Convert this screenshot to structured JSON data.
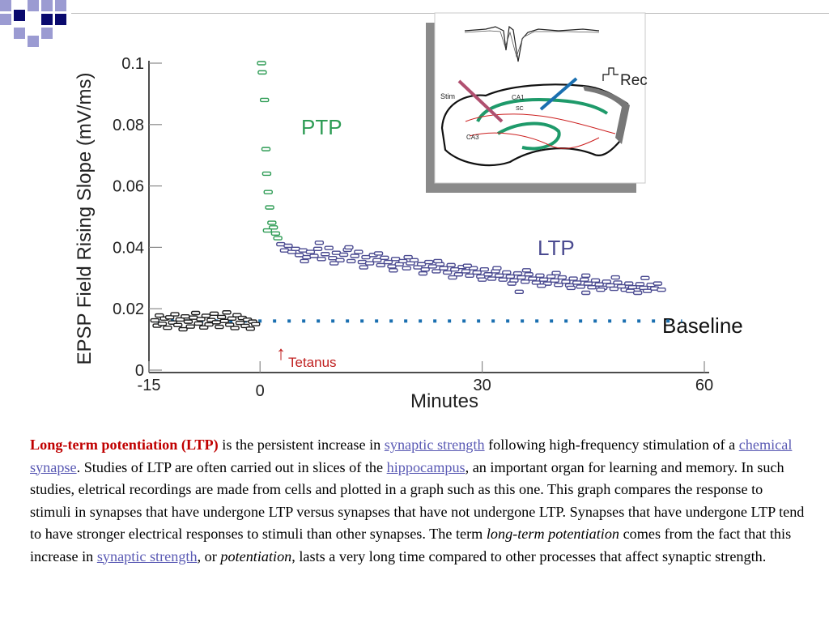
{
  "colors": {
    "accent_dark": "#0a0a6e",
    "accent_light": "#9b9bd2",
    "ptp_green": "#2e9c55",
    "ltp_marker": "#4a4a90",
    "baseline_marker": "#1e1e1e",
    "baseline_dotted": "#1a6fb0",
    "tetanus_red": "#c02020",
    "caption_lead": "#c00000",
    "caption_link": "#5a5ab4"
  },
  "chart_data": {
    "type": "scatter",
    "title": "",
    "xlabel": "Minutes",
    "ylabel": "EPSP Field Rising Slope (mV/ms)",
    "xlim": [
      -15,
      60
    ],
    "ylim": [
      0,
      0.1
    ],
    "x_ticks": [
      "-15",
      "0",
      "30",
      "60"
    ],
    "y_ticks": [
      "0",
      "0.02",
      "0.04",
      "0.06",
      "0.08",
      "0.1"
    ],
    "grid": false,
    "annotations": {
      "ptp": "PTP",
      "ltp": "LTP",
      "baseline": "Baseline",
      "tetanus": "Tetanus",
      "tetanus_arrow": "↑"
    },
    "baseline_level": 0.016,
    "series": [
      {
        "role": "pre-tetanus",
        "points": [
          [
            -14.2,
            0.0162
          ],
          [
            -13.9,
            0.0145
          ],
          [
            -13.6,
            0.0178
          ],
          [
            -13.2,
            0.0151
          ],
          [
            -12.9,
            0.0168
          ],
          [
            -12.5,
            0.0138
          ],
          [
            -12.2,
            0.0172
          ],
          [
            -11.8,
            0.0155
          ],
          [
            -11.5,
            0.0182
          ],
          [
            -11.1,
            0.0147
          ],
          [
            -10.8,
            0.0165
          ],
          [
            -10.4,
            0.0133
          ],
          [
            -10.1,
            0.0175
          ],
          [
            -9.7,
            0.0158
          ],
          [
            -9.4,
            0.0142
          ],
          [
            -9.0,
            0.0171
          ],
          [
            -8.7,
            0.0186
          ],
          [
            -8.3,
            0.0152
          ],
          [
            -8.0,
            0.0166
          ],
          [
            -7.6,
            0.0139
          ],
          [
            -7.3,
            0.0177
          ],
          [
            -6.9,
            0.0149
          ],
          [
            -6.6,
            0.0163
          ],
          [
            -6.2,
            0.0184
          ],
          [
            -5.9,
            0.0156
          ],
          [
            -5.5,
            0.0141
          ],
          [
            -5.2,
            0.0173
          ],
          [
            -4.8,
            0.016
          ],
          [
            -4.5,
            0.0188
          ],
          [
            -4.1,
            0.0148
          ],
          [
            -3.8,
            0.0168
          ],
          [
            -3.4,
            0.0137
          ],
          [
            -3.1,
            0.0179
          ],
          [
            -2.7,
            0.0154
          ],
          [
            -2.4,
            0.017
          ],
          [
            -2.0,
            0.0144
          ],
          [
            -1.7,
            0.0164
          ],
          [
            -1.3,
            0.0135
          ],
          [
            -1.0,
            0.0158
          ],
          [
            -0.6,
            0.015
          ]
        ]
      },
      {
        "role": "post-tetanic potentiation",
        "points": [
          [
            0.2,
            0.1
          ],
          [
            0.3,
            0.097
          ],
          [
            0.6,
            0.088
          ],
          [
            0.8,
            0.072
          ],
          [
            0.9,
            0.064
          ],
          [
            1.1,
            0.058
          ],
          [
            1.3,
            0.053
          ],
          [
            1.6,
            0.048
          ],
          [
            1.8,
            0.0465
          ],
          [
            2.1,
            0.0445
          ],
          [
            2.4,
            0.043
          ],
          [
            1.0,
            0.0455
          ]
        ]
      },
      {
        "role": "post-tetanus",
        "points": [
          [
            2.8,
            0.041
          ],
          [
            3.3,
            0.039
          ],
          [
            3.8,
            0.0405
          ],
          [
            4.3,
            0.0385
          ],
          [
            4.8,
            0.0395
          ],
          [
            5.3,
            0.0375
          ],
          [
            5.8,
            0.039
          ],
          [
            6.3,
            0.0368
          ],
          [
            6.8,
            0.0385
          ],
          [
            7.3,
            0.0372
          ],
          [
            7.8,
            0.0395
          ],
          [
            8.3,
            0.0362
          ],
          [
            8.8,
            0.0378
          ],
          [
            9.3,
            0.0398
          ],
          [
            9.8,
            0.0365
          ],
          [
            10.3,
            0.0382
          ],
          [
            10.8,
            0.0358
          ],
          [
            11.3,
            0.0376
          ],
          [
            11.8,
            0.0392
          ],
          [
            12.3,
            0.0355
          ],
          [
            12.8,
            0.0372
          ],
          [
            13.3,
            0.0385
          ],
          [
            13.8,
            0.0352
          ],
          [
            14.3,
            0.0368
          ],
          [
            14.8,
            0.0348
          ],
          [
            15.3,
            0.0375
          ],
          [
            15.8,
            0.0358
          ],
          [
            16.3,
            0.0342
          ],
          [
            16.8,
            0.0366
          ],
          [
            17.3,
            0.0352
          ],
          [
            17.8,
            0.0338
          ],
          [
            18.3,
            0.0362
          ],
          [
            18.8,
            0.0345
          ],
          [
            19.3,
            0.0355
          ],
          [
            19.8,
            0.0332
          ],
          [
            20.3,
            0.0348
          ],
          [
            20.8,
            0.0358
          ],
          [
            21.3,
            0.0335
          ],
          [
            21.8,
            0.0345
          ],
          [
            22.3,
            0.0328
          ],
          [
            22.8,
            0.0352
          ],
          [
            23.3,
            0.0338
          ],
          [
            23.8,
            0.0322
          ],
          [
            24.3,
            0.0345
          ],
          [
            24.8,
            0.0332
          ],
          [
            25.3,
            0.0318
          ],
          [
            25.8,
            0.0342
          ],
          [
            26.3,
            0.0328
          ],
          [
            26.8,
            0.0312
          ],
          [
            27.3,
            0.0336
          ],
          [
            27.8,
            0.0322
          ],
          [
            28.3,
            0.0308
          ],
          [
            28.8,
            0.0332
          ],
          [
            29.3,
            0.0318
          ],
          [
            29.8,
            0.0305
          ],
          [
            30.3,
            0.0328
          ],
          [
            30.8,
            0.0312
          ],
          [
            31.3,
            0.0298
          ],
          [
            31.8,
            0.0322
          ],
          [
            32.3,
            0.0308
          ],
          [
            32.8,
            0.0295
          ],
          [
            33.3,
            0.0318
          ],
          [
            33.8,
            0.0305
          ],
          [
            34.3,
            0.0292
          ],
          [
            34.8,
            0.0315
          ],
          [
            35.3,
            0.0302
          ],
          [
            35.8,
            0.0288
          ],
          [
            36.3,
            0.0312
          ],
          [
            36.8,
            0.0298
          ],
          [
            37.3,
            0.0285
          ],
          [
            37.8,
            0.0308
          ],
          [
            38.3,
            0.0295
          ],
          [
            38.8,
            0.0282
          ],
          [
            39.3,
            0.0305
          ],
          [
            39.8,
            0.0292
          ],
          [
            40.3,
            0.0278
          ],
          [
            40.8,
            0.0302
          ],
          [
            41.3,
            0.0288
          ],
          [
            41.8,
            0.0276
          ],
          [
            42.3,
            0.0298
          ],
          [
            42.8,
            0.0285
          ],
          [
            43.3,
            0.0272
          ],
          [
            43.8,
            0.0295
          ],
          [
            44.3,
            0.0282
          ],
          [
            44.8,
            0.027
          ],
          [
            45.3,
            0.0292
          ],
          [
            45.8,
            0.0279
          ],
          [
            46.3,
            0.0268
          ],
          [
            46.8,
            0.0288
          ],
          [
            47.3,
            0.0276
          ],
          [
            47.8,
            0.0265
          ],
          [
            48.3,
            0.0285
          ],
          [
            48.8,
            0.0273
          ],
          [
            49.3,
            0.0262
          ],
          [
            49.8,
            0.0282
          ],
          [
            50.3,
            0.027
          ],
          [
            50.8,
            0.026
          ],
          [
            51.3,
            0.028
          ],
          [
            51.8,
            0.0268
          ],
          [
            52.3,
            0.0258
          ],
          [
            52.8,
            0.0278
          ],
          [
            53.3,
            0.0266
          ],
          [
            53.7,
            0.0282
          ],
          [
            54.2,
            0.0262
          ],
          [
            8.0,
            0.0415
          ],
          [
            12.0,
            0.04
          ],
          [
            16.0,
            0.038
          ],
          [
            20.0,
            0.0368
          ],
          [
            24.0,
            0.0355
          ],
          [
            28.0,
            0.034
          ],
          [
            32.0,
            0.0332
          ],
          [
            36.0,
            0.0325
          ],
          [
            40.0,
            0.0316
          ],
          [
            44.0,
            0.0308
          ],
          [
            48.0,
            0.0302
          ],
          [
            52.0,
            0.03
          ],
          [
            6.0,
            0.0355
          ],
          [
            10.0,
            0.0348
          ],
          [
            14.0,
            0.0335
          ],
          [
            18.0,
            0.0325
          ],
          [
            22.0,
            0.0315
          ],
          [
            26.0,
            0.0302
          ],
          [
            30.0,
            0.0295
          ],
          [
            34.0,
            0.0282
          ],
          [
            38.0,
            0.0275
          ],
          [
            42.0,
            0.0268
          ],
          [
            46.0,
            0.0262
          ],
          [
            50.0,
            0.0258
          ],
          [
            35.0,
            0.0255
          ],
          [
            44.0,
            0.0252
          ],
          [
            51.0,
            0.0252
          ]
        ]
      }
    ],
    "inset": {
      "labels": {
        "rec": "Rec",
        "stim": "Stim",
        "ca1": "CA1",
        "sc": "SC",
        "ca3": "CA3"
      }
    }
  },
  "caption": {
    "lead": "Long-term potentiation (LTP)",
    "t1": " is the persistent increase in ",
    "link1": "synaptic strength",
    "t2": " following high-frequency stimulation of a ",
    "link2": "chemical synapse",
    "t3": ". Studies of LTP are often carried out in slices of the ",
    "link3": "hippocampus",
    "t4": ", an important organ for learning and memory. In such studies, eletrical recordings are made from cells and plotted in a graph such as this one. This graph compares the response to stimuli in synapses that have undergone LTP versus synapses that have not undergone LTP. Synapses that have undergone LTP tend to have stronger electrical responses to stimuli than other synapses. The term ",
    "em1": "long-term potentiation",
    "t5": " comes from the fact that this increase in ",
    "link4": "synaptic strength",
    "t6": ", or ",
    "em2": "potentiation",
    "t7": ", lasts a very long time compared to other processes that affect synaptic strength."
  }
}
